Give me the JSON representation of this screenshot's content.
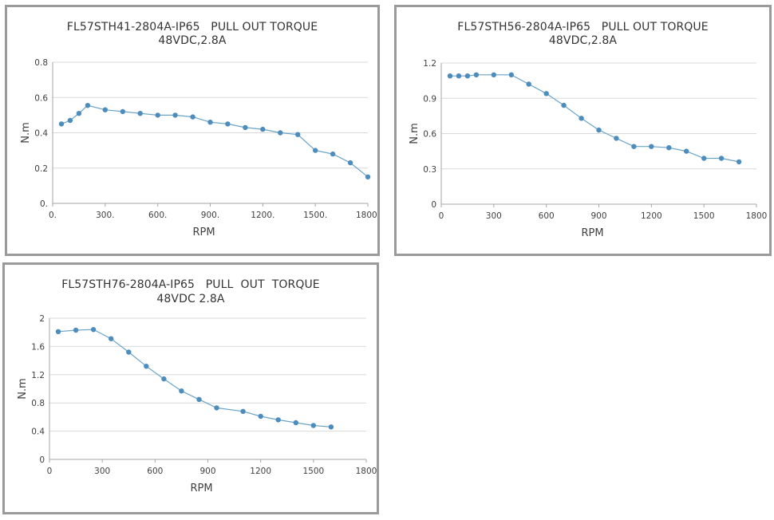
{
  "chart_data": [
    {
      "type": "line",
      "title": "FL57STH41-2804A-IP65   PULL OUT TORQUE",
      "subtitle": "48VDC,2.8A",
      "xlabel": "RPM",
      "ylabel": "N.m",
      "xlim": [
        0,
        1800
      ],
      "ylim": [
        0,
        0.8
      ],
      "xticks": [
        0,
        300,
        600,
        900,
        1200,
        1500,
        1800
      ],
      "xtick_labels": [
        "0.",
        "300.",
        "600.",
        "900.",
        "1200.",
        "1500.",
        "1800."
      ],
      "yticks": [
        0,
        0.2,
        0.4,
        0.6,
        0.8
      ],
      "ytick_labels": [
        "0.",
        "0.2",
        "0.4",
        "0.6",
        "0.8"
      ],
      "grid": true,
      "series": [
        {
          "name": "Pull out torque",
          "x": [
            50,
            100,
            150,
            200,
            300,
            400,
            500,
            600,
            700,
            800,
            900,
            1000,
            1100,
            1200,
            1300,
            1400,
            1500,
            1600,
            1700,
            1800
          ],
          "y": [
            0.45,
            0.47,
            0.51,
            0.555,
            0.53,
            0.52,
            0.51,
            0.5,
            0.5,
            0.49,
            0.46,
            0.45,
            0.43,
            0.42,
            0.4,
            0.39,
            0.3,
            0.28,
            0.23,
            0.15
          ]
        }
      ]
    },
    {
      "type": "line",
      "title": "FL57STH56-2804A-IP65   PULL OUT TORQUE",
      "subtitle": "48VDC,2.8A",
      "xlabel": "RPM",
      "ylabel": "N.m",
      "xlim": [
        0,
        1800
      ],
      "ylim": [
        0,
        1.2
      ],
      "xticks": [
        0,
        300,
        600,
        900,
        1200,
        1500,
        1800
      ],
      "xtick_labels": [
        "0",
        "300",
        "600",
        "900",
        "1200",
        "1500",
        "1800"
      ],
      "yticks": [
        0,
        0.3,
        0.6,
        0.9,
        1.2
      ],
      "ytick_labels": [
        "0",
        "0.3",
        "0.6",
        "0.9",
        "1.2"
      ],
      "grid": true,
      "series": [
        {
          "name": "Pull out torque",
          "x": [
            50,
            100,
            150,
            200,
            300,
            400,
            500,
            600,
            700,
            800,
            900,
            1000,
            1100,
            1200,
            1300,
            1400,
            1500,
            1600,
            1700
          ],
          "y": [
            1.09,
            1.09,
            1.09,
            1.1,
            1.1,
            1.1,
            1.02,
            0.94,
            0.84,
            0.73,
            0.63,
            0.56,
            0.49,
            0.49,
            0.48,
            0.45,
            0.39,
            0.39,
            0.36
          ]
        }
      ]
    },
    {
      "type": "line",
      "title": "FL57STH76-2804A-IP65   PULL  OUT  TORQUE",
      "subtitle": "48VDC 2.8A",
      "xlabel": "RPM",
      "ylabel": "N.m",
      "xlim": [
        0,
        1800
      ],
      "ylim": [
        0,
        2
      ],
      "xticks": [
        0,
        300,
        600,
        900,
        1200,
        1500,
        1800
      ],
      "xtick_labels": [
        "0",
        "300",
        "600",
        "900",
        "1200",
        "1500",
        "1800"
      ],
      "yticks": [
        0,
        0.4,
        0.8,
        1.2,
        1.6,
        2
      ],
      "ytick_labels": [
        "0",
        "0.4",
        "0.8",
        "1.2",
        "1.6",
        "2"
      ],
      "grid": true,
      "series": [
        {
          "name": "Pull out torque",
          "x": [
            50,
            150,
            250,
            350,
            450,
            550,
            650,
            750,
            850,
            950,
            1100,
            1200,
            1300,
            1400,
            1500,
            1600
          ],
          "y": [
            1.81,
            1.83,
            1.84,
            1.71,
            1.52,
            1.32,
            1.14,
            0.97,
            0.85,
            0.73,
            0.68,
            0.61,
            0.56,
            0.52,
            0.48,
            0.46
          ]
        }
      ]
    }
  ]
}
